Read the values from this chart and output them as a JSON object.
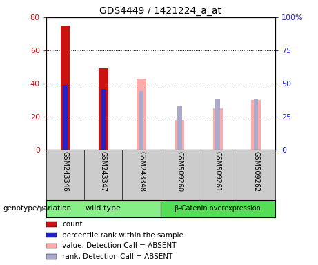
{
  "title": "GDS4449 / 1421224_a_at",
  "samples": [
    "GSM243346",
    "GSM243347",
    "GSM243348",
    "GSM509260",
    "GSM509261",
    "GSM509262"
  ],
  "count_values": [
    75,
    49,
    null,
    null,
    null,
    null
  ],
  "percentile_rank_values": [
    49,
    46,
    null,
    null,
    null,
    null
  ],
  "absent_value_values": [
    null,
    null,
    43,
    18,
    25,
    30
  ],
  "absent_rank_values": [
    null,
    null,
    44,
    33,
    38,
    38
  ],
  "left_ylim": [
    0,
    80
  ],
  "right_ylim": [
    0,
    100
  ],
  "left_yticks": [
    0,
    20,
    40,
    60,
    80
  ],
  "right_yticks": [
    0,
    25,
    50,
    75,
    100
  ],
  "right_yticklabels": [
    "0",
    "25",
    "50",
    "75",
    "100%"
  ],
  "color_count": "#cc1111",
  "color_rank": "#2222cc",
  "color_absent_value": "#ffaaaa",
  "color_absent_rank": "#aaaacc",
  "color_wildtype_bg": "#88ee88",
  "color_overexp_bg": "#55dd55",
  "color_sample_box": "#cccccc",
  "genotype_label": "genotype/variation",
  "wt_label": "wild type",
  "bc_label": "β-Catenin overexpression",
  "legend_items": [
    [
      "#cc1111",
      "count"
    ],
    [
      "#2222cc",
      "percentile rank within the sample"
    ],
    [
      "#ffaaaa",
      "value, Detection Call = ABSENT"
    ],
    [
      "#aaaacc",
      "rank, Detection Call = ABSENT"
    ]
  ]
}
